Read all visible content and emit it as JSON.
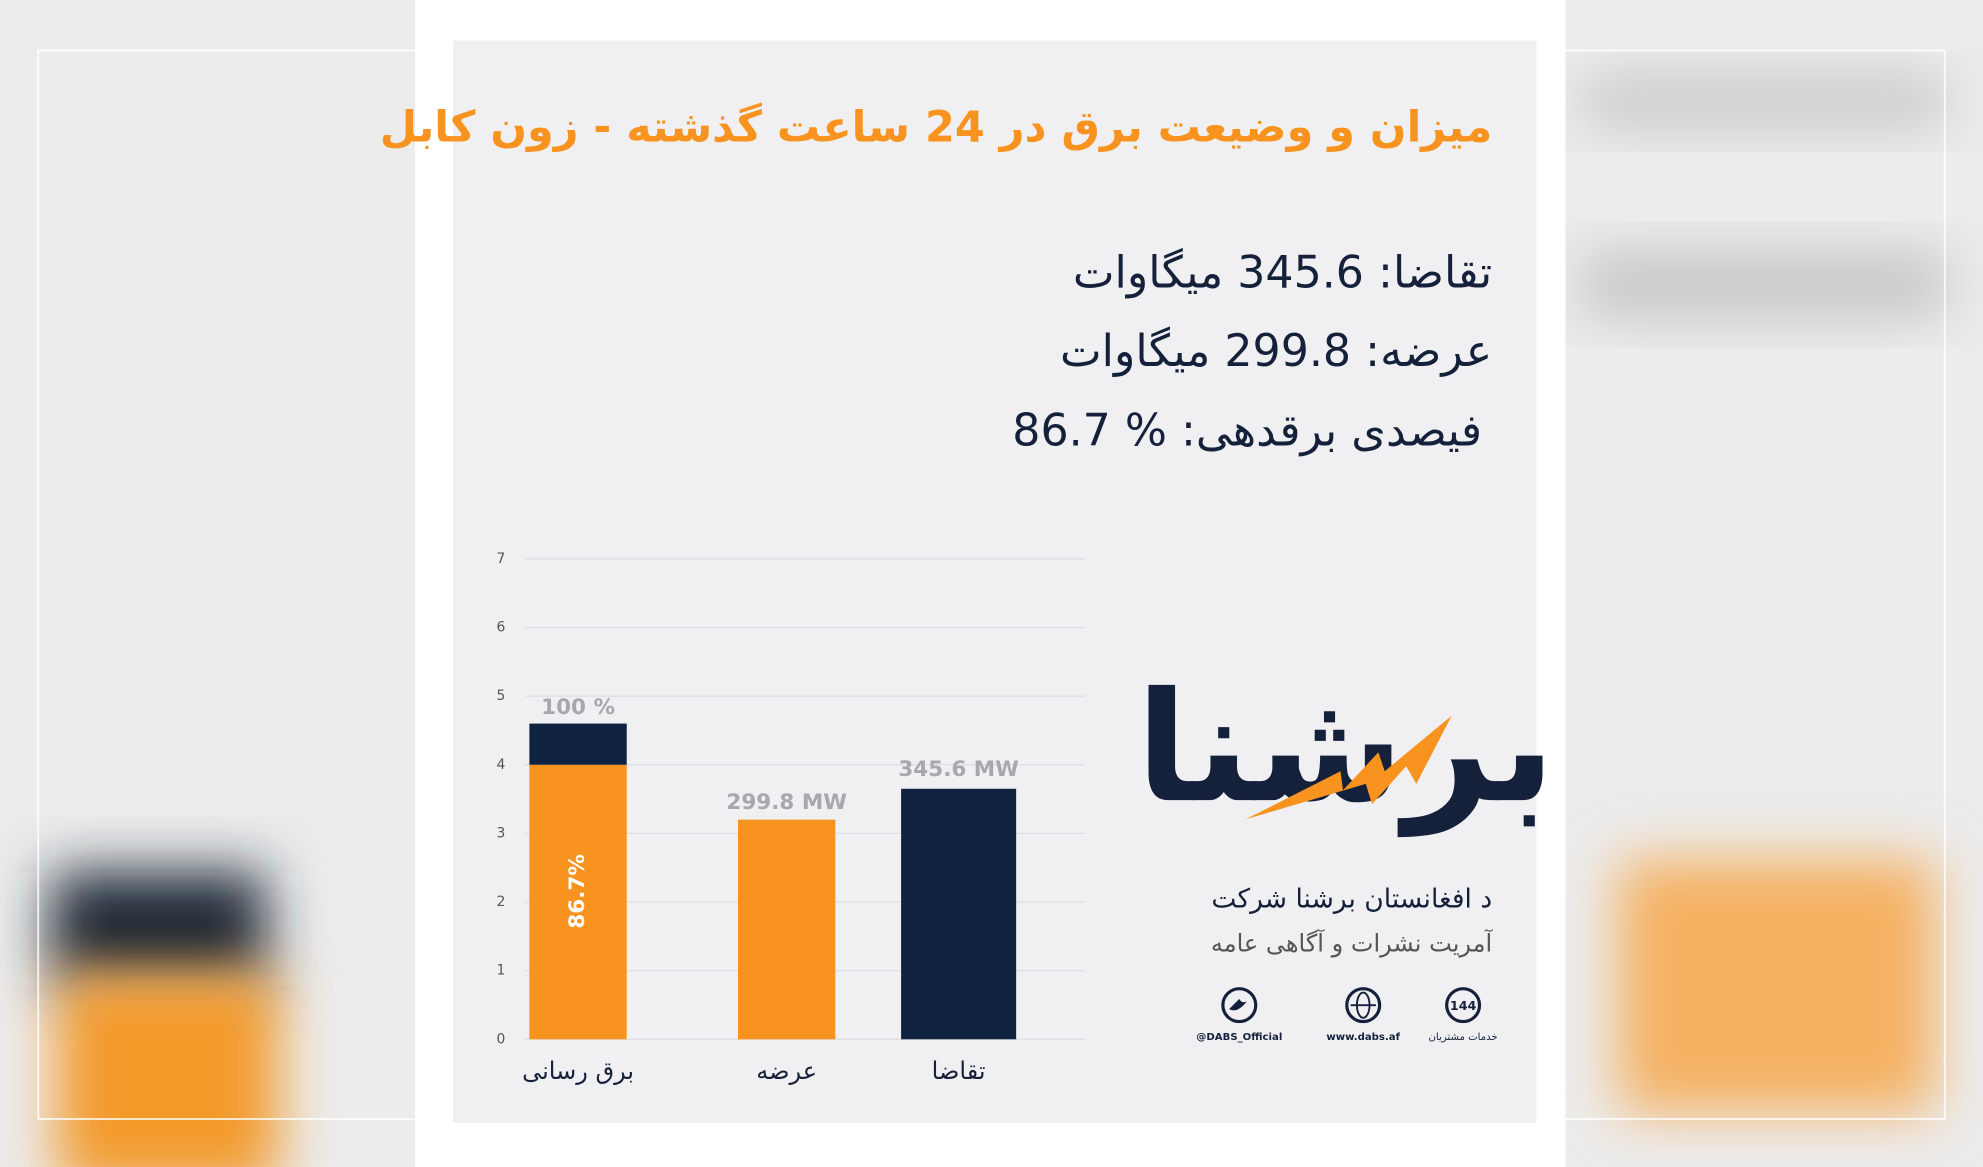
{
  "header": {
    "title": "میزان و وضیعت برق در 24 ساعت گذشته - زون کابل"
  },
  "stats": [
    "تقاضا: 345.6 میگاوات",
    "عرضه: 299.8 میگاوات",
    "فیصدی برقدهی: % 86.7"
  ],
  "chart_data": {
    "type": "bar",
    "stacked": true,
    "categories": [
      "برق رسانی",
      "عرضه",
      "تقاضا"
    ],
    "series": [
      {
        "color": "#f7931e",
        "values": [
          4.0,
          3.2,
          null
        ]
      },
      {
        "color": "#0f2341",
        "values": [
          0.6,
          null,
          3.65
        ]
      }
    ],
    "annotations": [
      "100 %",
      "299.8 MW",
      "345.6 MW",
      "86.7%"
    ],
    "ylim": [
      0,
      7
    ],
    "yticks": [
      0,
      1,
      2,
      3,
      4,
      5,
      6,
      7
    ],
    "grid": true
  },
  "logo": {
    "name": "برشنا",
    "company": "د افغانستان برشنا شرکت",
    "department": "آمریت نشرات و آگاهی عامه",
    "hotline": "144",
    "contacts": [
      "@DABS_Official",
      "www.dabs.af",
      "خدمات مشتریان"
    ]
  }
}
